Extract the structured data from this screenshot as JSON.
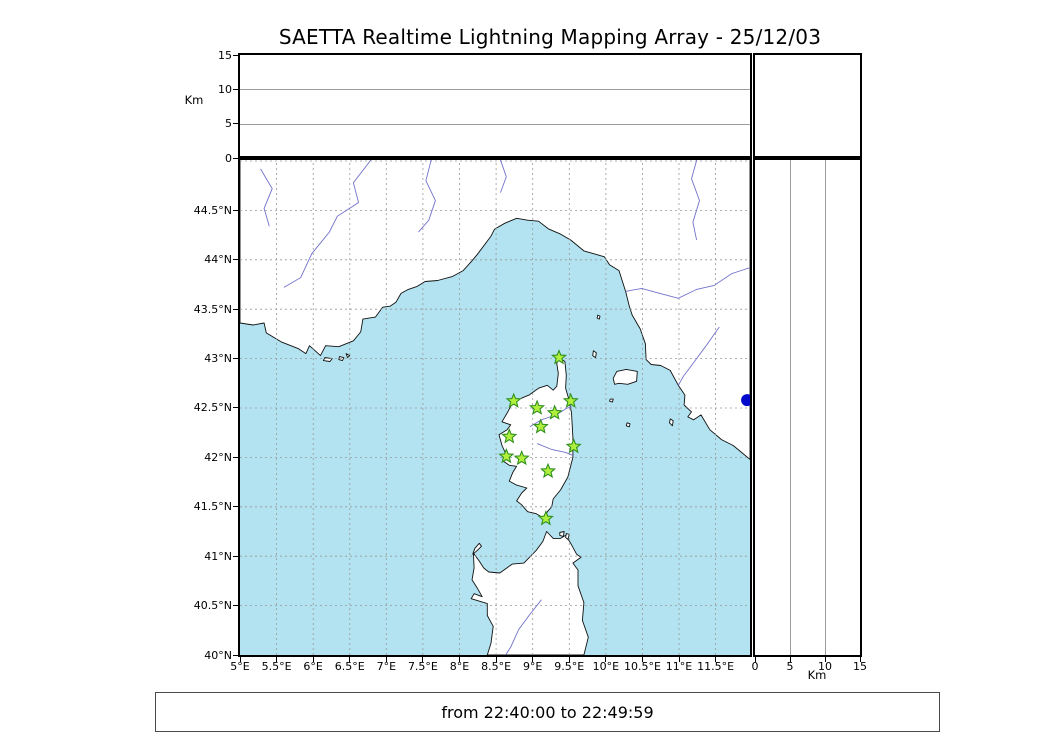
{
  "title": "SAETTA Realtime Lightning Mapping Array - 25/12/03",
  "footer": {
    "text": "from 22:40:00 to 22:49:59"
  },
  "colors": {
    "sea": "#b3e3f0",
    "land": "#ffffff",
    "coastline": "#111111",
    "river": "#7272cc",
    "grid": "#999999",
    "panel_gridline": "#9c9c9c",
    "station_fill": "#b0f03c",
    "station_edge": "#2f8f1f",
    "event_dot": "#0008cc"
  },
  "altitude_axis": {
    "unit": "Km",
    "ticks": [
      0,
      5,
      10,
      15
    ],
    "max_km": 15,
    "interior_lines_km": [
      5,
      10
    ]
  },
  "map": {
    "lon_min": 5.0,
    "lon_max": 11.97,
    "lat_min": 40.0,
    "lat_max": 45.03,
    "grid_step_deg": 0.5,
    "lat_ticks": [
      {
        "label": "44.5°N",
        "value": 44.5
      },
      {
        "label": "44°N",
        "value": 44
      },
      {
        "label": "43.5°N",
        "value": 43.5
      },
      {
        "label": "43°N",
        "value": 43
      },
      {
        "label": "42.5°N",
        "value": 42.5
      },
      {
        "label": "42°N",
        "value": 42
      },
      {
        "label": "41.5°N",
        "value": 41.5
      },
      {
        "label": "41°N",
        "value": 41
      },
      {
        "label": "40.5°N",
        "value": 40.5
      },
      {
        "label": "40°N",
        "value": 40
      }
    ],
    "lon_ticks": [
      {
        "label": "5°E",
        "value": 5
      },
      {
        "label": "5.5°E",
        "value": 5.5
      },
      {
        "label": "6°E",
        "value": 6
      },
      {
        "label": "6.5°E",
        "value": 6.5
      },
      {
        "label": "7°E",
        "value": 7
      },
      {
        "label": "7.5°E",
        "value": 7.5
      },
      {
        "label": "8°E",
        "value": 8
      },
      {
        "label": "8.5°E",
        "value": 8.5
      },
      {
        "label": "9°E",
        "value": 9
      },
      {
        "label": "9.5°E",
        "value": 9.5
      },
      {
        "label": "10°E",
        "value": 10
      },
      {
        "label": "10.5°E",
        "value": 10.5
      },
      {
        "label": "11°E",
        "value": 11
      },
      {
        "label": "11.5°E",
        "value": 11.5
      }
    ]
  },
  "stations": [
    {
      "lon": 9.36,
      "lat": 43.01
    },
    {
      "lon": 8.74,
      "lat": 42.57
    },
    {
      "lon": 9.06,
      "lat": 42.5
    },
    {
      "lon": 9.52,
      "lat": 42.57
    },
    {
      "lon": 9.3,
      "lat": 42.45
    },
    {
      "lon": 9.11,
      "lat": 42.31
    },
    {
      "lon": 8.68,
      "lat": 42.21
    },
    {
      "lon": 9.56,
      "lat": 42.11
    },
    {
      "lon": 8.64,
      "lat": 42.01
    },
    {
      "lon": 8.85,
      "lat": 41.99
    },
    {
      "lon": 9.21,
      "lat": 41.86
    },
    {
      "lon": 9.18,
      "lat": 41.38
    }
  ],
  "event_marker": {
    "lon": 11.93,
    "lat": 42.58
  }
}
